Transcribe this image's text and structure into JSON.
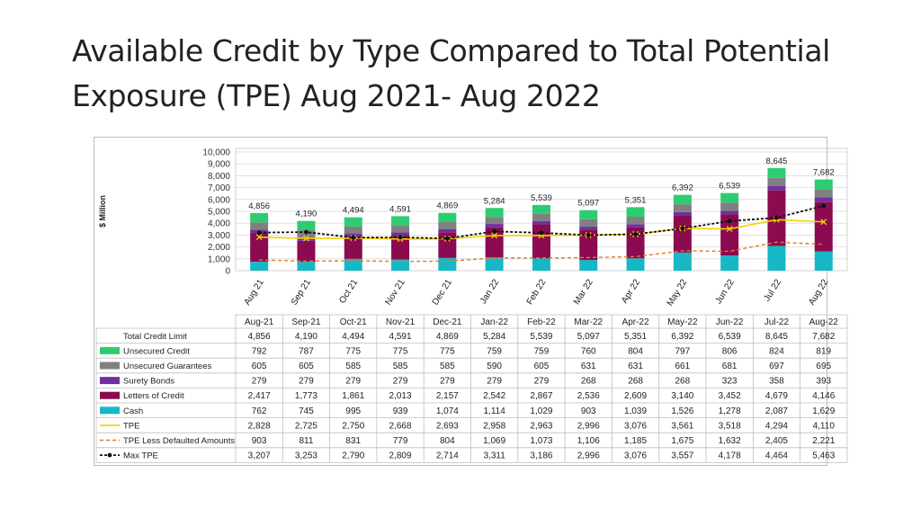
{
  "title": "Available Credit by Type Compared to Total Potential Exposure (TPE) Aug 2021- Aug 2022",
  "colors": {
    "unsecured_credit": "#2ecc71",
    "unsecured_guarantees": "#808080",
    "surety_bonds": "#7030a0",
    "letters_of_credit": "#8b0a50",
    "cash": "#17b8c6",
    "tpe": "#f5d000",
    "tpe_less_defaulted": "#e07b2a",
    "max_tpe": "#111111"
  },
  "chart_data": {
    "type": "bar",
    "stacked": true,
    "ylabel": "$ Million",
    "ylim": [
      0,
      10000
    ],
    "yticks": [
      "10,000",
      "9,000",
      "8,000",
      "7,000",
      "6,000",
      "5,000",
      "4,000",
      "3,000",
      "2,000",
      "1,000",
      "0"
    ],
    "categories": [
      "Aug 21",
      "Sep 21",
      "Oct 21",
      "Nov 21",
      "Dec 21",
      "Jan 22",
      "Feb 22",
      "Mar 22",
      "Apr 22",
      "May 22",
      "Jun 22",
      "Jul 22",
      "Aug 22"
    ],
    "table_columns": [
      "Aug-21",
      "Sep-21",
      "Oct-21",
      "Nov-21",
      "Dec-21",
      "Jan-22",
      "Feb-22",
      "Mar-22",
      "Apr-22",
      "May-22",
      "Jun-22",
      "Jul-22",
      "Aug-22"
    ],
    "total_label": "Total Credit Limit",
    "totals": [
      4856,
      4190,
      4494,
      4591,
      4869,
      5284,
      5539,
      5097,
      5351,
      6392,
      6539,
      8645,
      7682
    ],
    "total_labels": [
      "4,856",
      "4,190",
      "4,494",
      "4,591",
      "4,869",
      "5,284",
      "5,539",
      "5,097",
      "5,351",
      "6,392",
      "6,539",
      "8,645",
      "7,682"
    ],
    "series": [
      {
        "name": "Unsecured Credit",
        "kind": "bar",
        "color_key": "unsecured_credit",
        "values": [
          792,
          787,
          775,
          775,
          775,
          759,
          759,
          760,
          804,
          797,
          806,
          824,
          819
        ],
        "labels": [
          "792",
          "787",
          "775",
          "775",
          "775",
          "759",
          "759",
          "760",
          "804",
          "797",
          "806",
          "824",
          "819"
        ]
      },
      {
        "name": "Unsecured Guarantees",
        "kind": "bar",
        "color_key": "unsecured_guarantees",
        "values": [
          605,
          605,
          585,
          585,
          585,
          590,
          605,
          631,
          631,
          661,
          681,
          697,
          695
        ],
        "labels": [
          "605",
          "605",
          "585",
          "585",
          "585",
          "590",
          "605",
          "631",
          "631",
          "661",
          "681",
          "697",
          "695"
        ]
      },
      {
        "name": "Surety Bonds",
        "kind": "bar",
        "color_key": "surety_bonds",
        "values": [
          279,
          279,
          279,
          279,
          279,
          279,
          279,
          268,
          268,
          268,
          323,
          358,
          393
        ],
        "labels": [
          "279",
          "279",
          "279",
          "279",
          "279",
          "279",
          "279",
          "268",
          "268",
          "268",
          "323",
          "358",
          "393"
        ]
      },
      {
        "name": "Letters of Credit",
        "kind": "bar",
        "color_key": "letters_of_credit",
        "values": [
          2417,
          1773,
          1861,
          2013,
          2157,
          2542,
          2867,
          2536,
          2609,
          3140,
          3452,
          4679,
          4146
        ],
        "labels": [
          "2,417",
          "1,773",
          "1,861",
          "2,013",
          "2,157",
          "2,542",
          "2,867",
          "2,536",
          "2,609",
          "3,140",
          "3,452",
          "4,679",
          "4,146"
        ]
      },
      {
        "name": "Cash",
        "kind": "bar",
        "color_key": "cash",
        "values": [
          762,
          745,
          995,
          939,
          1074,
          1114,
          1029,
          903,
          1039,
          1526,
          1278,
          2087,
          1629
        ],
        "labels": [
          "762",
          "745",
          "995",
          "939",
          "1,074",
          "1,114",
          "1,029",
          "903",
          "1,039",
          "1,526",
          "1,278",
          "2,087",
          "1,629"
        ]
      },
      {
        "name": "TPE",
        "kind": "line",
        "color_key": "tpe",
        "values": [
          2828,
          2725,
          2750,
          2668,
          2693,
          2958,
          2963,
          2996,
          3076,
          3561,
          3518,
          4294,
          4110
        ],
        "labels": [
          "2,828",
          "2,725",
          "2,750",
          "2,668",
          "2,693",
          "2,958",
          "2,963",
          "2,996",
          "3,076",
          "3,561",
          "3,518",
          "4,294",
          "4,110"
        ]
      },
      {
        "name": "TPE Less Defaulted Amounts",
        "kind": "line-dash",
        "color_key": "tpe_less_defaulted",
        "values": [
          903,
          811,
          831,
          779,
          804,
          1069,
          1073,
          1106,
          1185,
          1675,
          1632,
          2405,
          2221
        ],
        "labels": [
          "903",
          "811",
          "831",
          "779",
          "804",
          "1,069",
          "1,073",
          "1,106",
          "1,185",
          "1,675",
          "1,632",
          "2,405",
          "2,221"
        ]
      },
      {
        "name": "Max TPE",
        "kind": "line-dot",
        "color_key": "max_tpe",
        "values": [
          3207,
          3253,
          2790,
          2809,
          2714,
          3311,
          3186,
          2996,
          3076,
          3557,
          4178,
          4464,
          5463
        ],
        "labels": [
          "3,207",
          "3,253",
          "2,790",
          "2,809",
          "2,714",
          "3,311",
          "3,186",
          "2,996",
          "3,076",
          "3,557",
          "4,178",
          "4,464",
          "5,463"
        ]
      }
    ],
    "stack_order_bottom_up": [
      "Cash",
      "Letters of Credit",
      "Surety Bonds",
      "Unsecured Guarantees",
      "Unsecured Credit"
    ]
  }
}
